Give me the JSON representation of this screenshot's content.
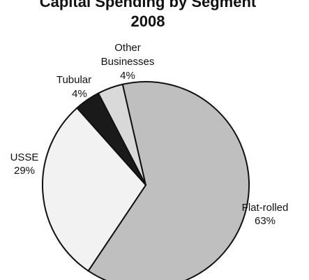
{
  "chart_data": {
    "type": "pie",
    "title_lines": [
      "Capital Spending by Segment",
      "2008"
    ],
    "slices": [
      {
        "label_lines": [
          "Flat-rolled",
          "63%"
        ],
        "value": 63,
        "color": "#bfbfbf"
      },
      {
        "label_lines": [
          "USSE",
          "29%"
        ],
        "value": 29,
        "color": "#f2f2f2"
      },
      {
        "label_lines": [
          "Tubular",
          "4%"
        ],
        "value": 4,
        "color": "#1a1a1a"
      },
      {
        "label_lines": [
          "Other",
          "Businesses",
          "4%"
        ],
        "value": 4,
        "color": "#d9d9d9"
      }
    ],
    "legend": "none"
  }
}
